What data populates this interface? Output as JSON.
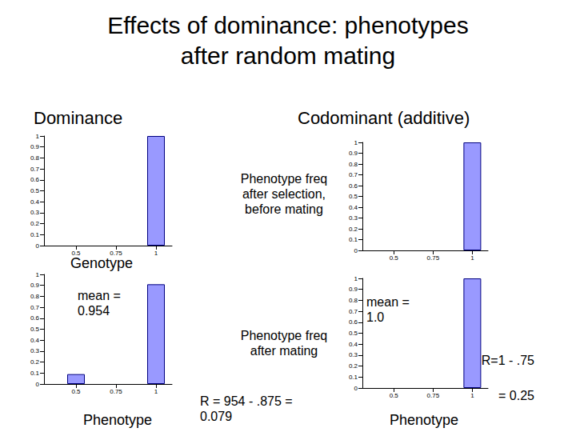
{
  "slide": {
    "title": "Effects of dominance: phenotypes\nafter random mating",
    "columns": [
      "Dominance",
      "Codominant (additive)"
    ],
    "rows": [
      "Phenotype freq\nafter selection,\nbefore mating",
      "Phenotype freq\nafter mating"
    ]
  },
  "chart_data": [
    {
      "type": "bar",
      "x": [
        1
      ],
      "values": [
        1
      ],
      "color": "#9999ff",
      "xlabel": "Genotype",
      "xlim": [
        0.3,
        1.1
      ],
      "xticks": [
        0.5,
        0.75,
        1
      ],
      "ylim": [
        0,
        1
      ],
      "yticks": [
        0,
        0.1,
        0.2,
        0.3,
        0.4,
        0.5,
        0.6,
        0.7,
        0.8,
        0.9,
        1
      ],
      "grid": false
    },
    {
      "type": "bar",
      "x": [
        1
      ],
      "values": [
        1
      ],
      "color": "#9999ff",
      "xlim": [
        0.3,
        1.1
      ],
      "xticks": [
        0.5,
        0.75,
        1
      ],
      "ylim": [
        0,
        1
      ],
      "yticks": [
        0,
        0.1,
        0.2,
        0.3,
        0.4,
        0.5,
        0.6,
        0.7,
        0.8,
        0.9,
        1
      ],
      "grid": false
    },
    {
      "type": "bar",
      "x": [
        0.5,
        1
      ],
      "values": [
        0.09,
        0.91
      ],
      "color": "#9999ff",
      "xlabel": "Phenotype",
      "annotations": [
        "mean =\n0.954",
        "R = 954 - .875 =\n0.079"
      ],
      "xlim": [
        0.3,
        1.1
      ],
      "xticks": [
        0.5,
        0.75,
        1
      ],
      "ylim": [
        0,
        1
      ],
      "yticks": [
        0,
        0.1,
        0.2,
        0.3,
        0.4,
        0.5,
        0.6,
        0.7,
        0.8,
        0.9,
        1
      ],
      "grid": false
    },
    {
      "type": "bar",
      "x": [
        1
      ],
      "values": [
        1
      ],
      "color": "#9999ff",
      "xlabel": "Phenotype",
      "annotations": [
        "mean =\n1.0",
        "R=1 - .75\n= 0.25"
      ],
      "xlim": [
        0.3,
        1.1
      ],
      "xticks": [
        0.5,
        0.75,
        1
      ],
      "ylim": [
        0,
        1
      ],
      "yticks": [
        0,
        0.1,
        0.2,
        0.3,
        0.4,
        0.5,
        0.6,
        0.7,
        0.8,
        0.9,
        1
      ],
      "grid": false
    }
  ]
}
